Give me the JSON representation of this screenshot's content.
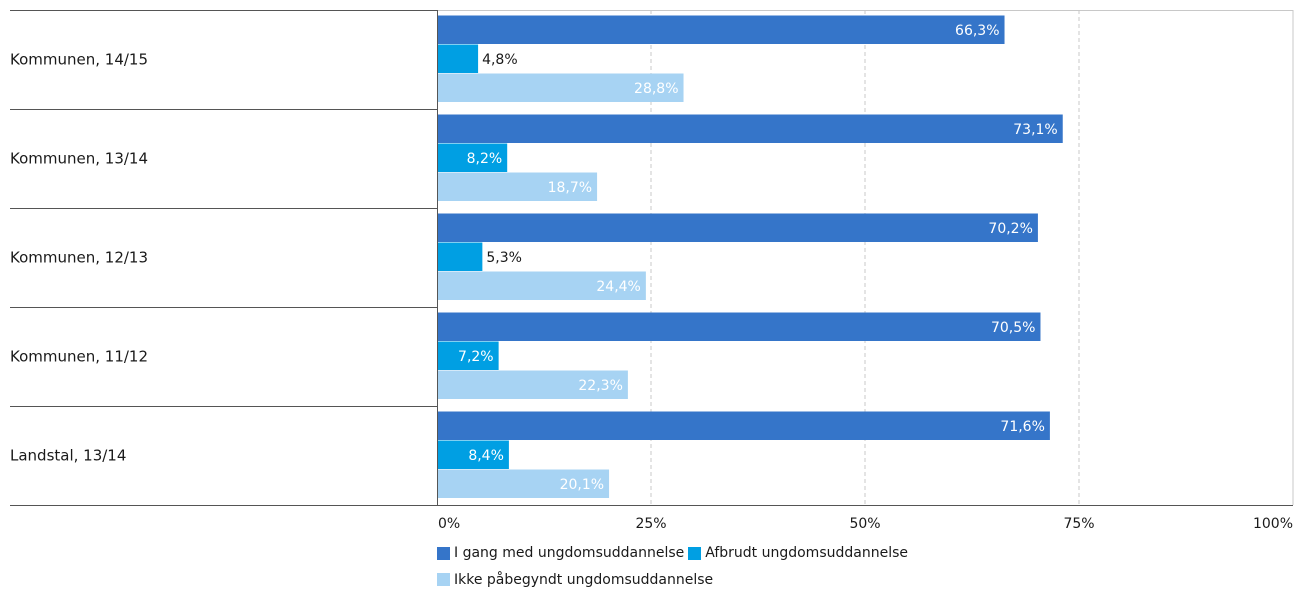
{
  "chart_data": {
    "type": "bar",
    "orientation": "horizontal",
    "categories": [
      "Kommunen, 14/15",
      "Kommunen, 13/14",
      "Kommunen, 12/13",
      "Kommunen, 11/12",
      "Landstal, 13/14"
    ],
    "series": [
      {
        "name": "I gang med ungdomsuddannelse",
        "color": "#3575c9",
        "values": [
          66.3,
          73.1,
          70.2,
          70.5,
          71.6
        ],
        "labels": [
          "66,3%",
          "73,1%",
          "70,2%",
          "70,5%",
          "71,6%"
        ]
      },
      {
        "name": "Afbrudt ungdomsuddannelse",
        "color": "#009fe3",
        "values": [
          4.8,
          8.2,
          5.3,
          7.2,
          8.4
        ],
        "labels": [
          "4,8%",
          "8,2%",
          "5,3%",
          "7,2%",
          "8,4%"
        ]
      },
      {
        "name": "Ikke påbegyndt ungdomsuddannelse",
        "color": "#a7d3f3",
        "values": [
          28.8,
          18.7,
          24.4,
          22.3,
          20.1
        ],
        "labels": [
          "28,8%",
          "18,7%",
          "24,4%",
          "22,3%",
          "20,1%"
        ]
      }
    ],
    "xlim": [
      0,
      100
    ],
    "x_ticks": [
      0,
      25,
      50,
      75,
      100
    ],
    "x_tick_labels": [
      "0%",
      "25%",
      "50%",
      "75%",
      "100%"
    ],
    "grid": "vertical dashed",
    "legend_position": "bottom"
  }
}
